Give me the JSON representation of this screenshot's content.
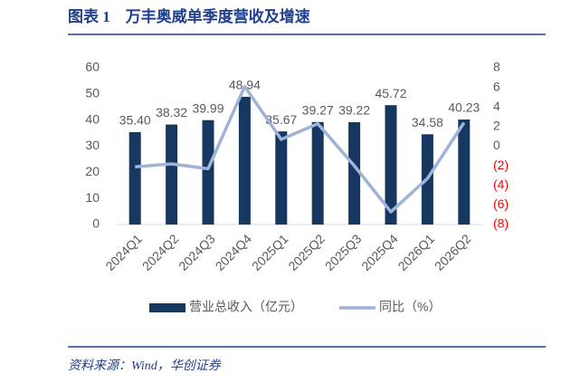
{
  "chart_data": {
    "type": "bar_line",
    "title": "图表 1　万丰奥威单季度营收及增速",
    "source": "资料来源：Wind，华创证券",
    "categories": [
      "2024Q1",
      "2024Q2",
      "2024Q3",
      "2024Q4",
      "2025Q1",
      "2025Q2",
      "2025Q3",
      "2025Q4",
      "2026Q1",
      "2026Q2"
    ],
    "series": [
      {
        "name": "营业总收入（亿元）",
        "type": "bar",
        "color": "#16375f",
        "values": [
          35.4,
          38.32,
          39.99,
          48.94,
          35.67,
          39.27,
          39.22,
          45.72,
          34.58,
          40.23
        ],
        "value_labels": [
          "35.40",
          "38.32",
          "39.99",
          "48.94",
          "35.67",
          "39.27",
          "39.22",
          "45.72",
          "34.58",
          "40.23"
        ]
      },
      {
        "name": "同比（%）",
        "type": "line",
        "axis": "y2",
        "color": "#9db4d8",
        "values": [
          -2.1,
          -1.8,
          -2.3,
          6.1,
          0.7,
          2.3,
          -2.0,
          -6.7,
          -3.3,
          2.4
        ]
      }
    ],
    "ylim": [
      0,
      60
    ],
    "yticks": [
      0,
      10,
      20,
      30,
      40,
      50,
      60
    ],
    "y2lim": [
      -8,
      8
    ],
    "y2ticks": [
      {
        "value": -8,
        "label": "(8)"
      },
      {
        "value": -6,
        "label": "(6)"
      },
      {
        "value": -4,
        "label": "(4)"
      },
      {
        "value": -2,
        "label": "(2)"
      },
      0,
      2,
      4,
      6,
      8
    ],
    "legend": "bottom"
  }
}
